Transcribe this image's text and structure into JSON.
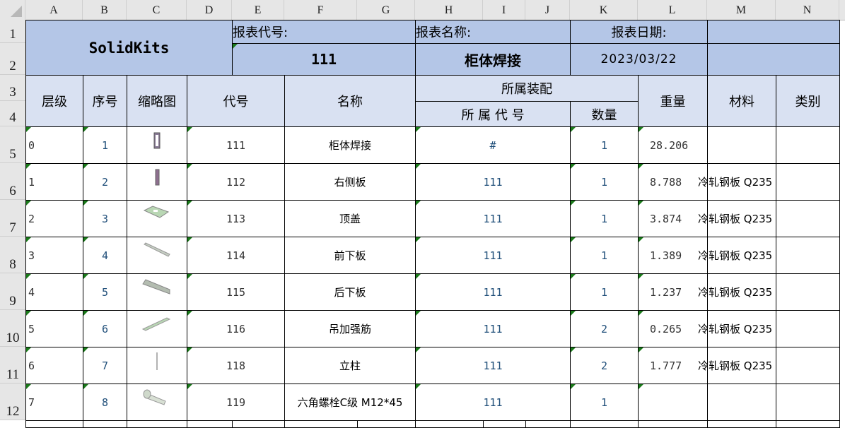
{
  "columns": [
    "A",
    "B",
    "C",
    "D",
    "E",
    "F",
    "G",
    "H",
    "I",
    "J",
    "K",
    "L",
    "M",
    "N"
  ],
  "row_numbers": [
    "1",
    "2",
    "3",
    "4",
    "5",
    "6",
    "7",
    "8",
    "9",
    "10",
    "11",
    "12"
  ],
  "report": {
    "brand": "SolidKits",
    "code_label": "报表代号:",
    "code_value": "111",
    "name_label": "报表名称:",
    "name_value": "柜体焊接",
    "date_label": "报表日期:",
    "date_value": "2023/03/22"
  },
  "headers": {
    "level": "层级",
    "seq": "序号",
    "thumb": "缩略图",
    "code": "代号",
    "name": "名称",
    "assembly": "所属装配",
    "parent_code": "所 属 代 号",
    "qty": "数量",
    "weight": "重量",
    "material": "材料",
    "category": "类别"
  },
  "rows": [
    {
      "level": "0",
      "seq": "1",
      "thumb": "frame-thumbnail",
      "code": "111",
      "name": "柜体焊接",
      "parent": "#",
      "qty": "1",
      "weight": "28.206",
      "material": "",
      "category": ""
    },
    {
      "level": "1",
      "seq": "2",
      "thumb": "side-panel-thumbnail",
      "code": "112",
      "name": "右侧板",
      "parent": "111",
      "qty": "1",
      "weight": "8.788",
      "material": "冷轧钢板 Q235",
      "category": ""
    },
    {
      "level": "2",
      "seq": "3",
      "thumb": "top-cover-thumbnail",
      "code": "113",
      "name": "顶盖",
      "parent": "111",
      "qty": "1",
      "weight": "3.874",
      "material": "冷轧钢板 Q235",
      "category": ""
    },
    {
      "level": "3",
      "seq": "4",
      "thumb": "bar-thumbnail",
      "code": "114",
      "name": "前下板",
      "parent": "111",
      "qty": "1",
      "weight": "1.389",
      "material": "冷轧钢板 Q235",
      "category": ""
    },
    {
      "level": "4",
      "seq": "5",
      "thumb": "channel-thumbnail",
      "code": "115",
      "name": "后下板",
      "parent": "111",
      "qty": "1",
      "weight": "1.237",
      "material": "冷轧钢板 Q235",
      "category": ""
    },
    {
      "level": "5",
      "seq": "6",
      "thumb": "rib-thumbnail",
      "code": "116",
      "name": "吊加强筋",
      "parent": "111",
      "qty": "2",
      "weight": "0.265",
      "material": "冷轧钢板 Q235",
      "category": ""
    },
    {
      "level": "6",
      "seq": "7",
      "thumb": "post-thumbnail",
      "code": "118",
      "name": "立柱",
      "parent": "111",
      "qty": "2",
      "weight": "1.777",
      "material": "冷轧钢板 Q235",
      "category": ""
    },
    {
      "level": "7",
      "seq": "8",
      "thumb": "bolt-thumbnail",
      "code": "119",
      "name": "六角螺栓C级 M12*45",
      "parent": "111",
      "qty": "1",
      "weight": "",
      "material": "",
      "category": ""
    }
  ]
}
